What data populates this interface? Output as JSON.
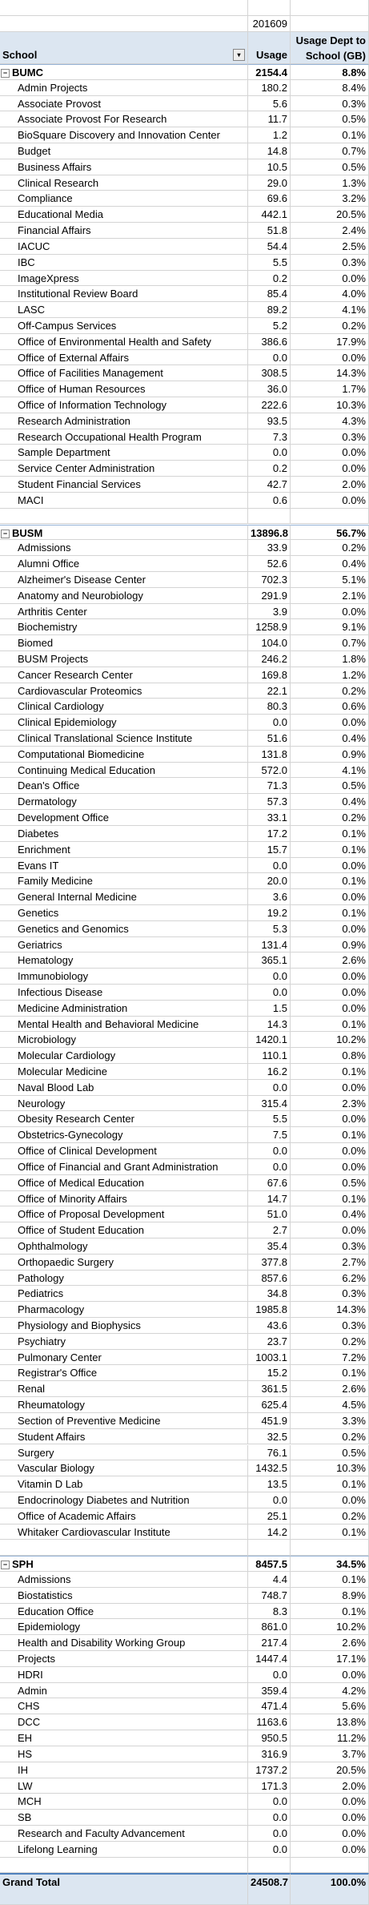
{
  "header": {
    "period": "201609",
    "col_school": "School",
    "col_usage": "Usage",
    "col_pct": "Usage Dept to School (GB)"
  },
  "groups": [
    {
      "name": "BUMC",
      "usage": "2154.4",
      "pct": "8.8%",
      "rows": [
        [
          "Admin Projects",
          "180.2",
          "8.4%"
        ],
        [
          "Associate Provost",
          "5.6",
          "0.3%"
        ],
        [
          "Associate Provost For Research",
          "11.7",
          "0.5%"
        ],
        [
          "BioSquare Discovery and Innovation Center",
          "1.2",
          "0.1%"
        ],
        [
          "Budget",
          "14.8",
          "0.7%"
        ],
        [
          "Business Affairs",
          "10.5",
          "0.5%"
        ],
        [
          "Clinical Research",
          "29.0",
          "1.3%"
        ],
        [
          "Compliance",
          "69.6",
          "3.2%"
        ],
        [
          "Educational Media",
          "442.1",
          "20.5%"
        ],
        [
          "Financial Affairs",
          "51.8",
          "2.4%"
        ],
        [
          "IACUC",
          "54.4",
          "2.5%"
        ],
        [
          "IBC",
          "5.5",
          "0.3%"
        ],
        [
          "ImageXpress",
          "0.2",
          "0.0%"
        ],
        [
          "Institutional Review Board",
          "85.4",
          "4.0%"
        ],
        [
          "LASC",
          "89.2",
          "4.1%"
        ],
        [
          "Off-Campus Services",
          "5.2",
          "0.2%"
        ],
        [
          "Office of Environmental Health and Safety",
          "386.6",
          "17.9%"
        ],
        [
          "Office of External Affairs",
          "0.0",
          "0.0%"
        ],
        [
          "Office of Facilities Management",
          "308.5",
          "14.3%"
        ],
        [
          "Office of Human Resources",
          "36.0",
          "1.7%"
        ],
        [
          "Office of Information Technology",
          "222.6",
          "10.3%"
        ],
        [
          "Research Administration",
          "93.5",
          "4.3%"
        ],
        [
          "Research Occupational Health Program",
          "7.3",
          "0.3%"
        ],
        [
          "Sample Department",
          "0.0",
          "0.0%"
        ],
        [
          "Service Center Administration",
          "0.2",
          "0.0%"
        ],
        [
          "Student Financial Services",
          "42.7",
          "2.0%"
        ],
        [
          "MACI",
          "0.6",
          "0.0%"
        ]
      ]
    },
    {
      "name": "BUSM",
      "usage": "13896.8",
      "pct": "56.7%",
      "rows": [
        [
          "Admissions",
          "33.9",
          "0.2%"
        ],
        [
          "Alumni Office",
          "52.6",
          "0.4%"
        ],
        [
          "Alzheimer's Disease Center",
          "702.3",
          "5.1%"
        ],
        [
          "Anatomy and Neurobiology",
          "291.9",
          "2.1%"
        ],
        [
          "Arthritis Center",
          "3.9",
          "0.0%"
        ],
        [
          "Biochemistry",
          "1258.9",
          "9.1%"
        ],
        [
          "Biomed",
          "104.0",
          "0.7%"
        ],
        [
          "BUSM Projects",
          "246.2",
          "1.8%"
        ],
        [
          "Cancer Research Center",
          "169.8",
          "1.2%"
        ],
        [
          "Cardiovascular Proteomics",
          "22.1",
          "0.2%"
        ],
        [
          "Clinical Cardiology",
          "80.3",
          "0.6%"
        ],
        [
          "Clinical Epidemiology",
          "0.0",
          "0.0%"
        ],
        [
          "Clinical Translational Science Institute",
          "51.6",
          "0.4%"
        ],
        [
          "Computational Biomedicine",
          "131.8",
          "0.9%"
        ],
        [
          "Continuing Medical Education",
          "572.0",
          "4.1%"
        ],
        [
          "Dean's Office",
          "71.3",
          "0.5%"
        ],
        [
          "Dermatology",
          "57.3",
          "0.4%"
        ],
        [
          "Development Office",
          "33.1",
          "0.2%"
        ],
        [
          "Diabetes",
          "17.2",
          "0.1%"
        ],
        [
          "Enrichment",
          "15.7",
          "0.1%"
        ],
        [
          "Evans IT",
          "0.0",
          "0.0%"
        ],
        [
          "Family Medicine",
          "20.0",
          "0.1%"
        ],
        [
          "General Internal Medicine",
          "3.6",
          "0.0%"
        ],
        [
          "Genetics",
          "19.2",
          "0.1%"
        ],
        [
          "Genetics and Genomics",
          "5.3",
          "0.0%"
        ],
        [
          "Geriatrics",
          "131.4",
          "0.9%"
        ],
        [
          "Hematology",
          "365.1",
          "2.6%"
        ],
        [
          "Immunobiology",
          "0.0",
          "0.0%"
        ],
        [
          "Infectious Disease",
          "0.0",
          "0.0%"
        ],
        [
          "Medicine Administration",
          "1.5",
          "0.0%"
        ],
        [
          "Mental Health and Behavioral Medicine",
          "14.3",
          "0.1%"
        ],
        [
          "Microbiology",
          "1420.1",
          "10.2%"
        ],
        [
          "Molecular Cardiology",
          "110.1",
          "0.8%"
        ],
        [
          "Molecular Medicine",
          "16.2",
          "0.1%"
        ],
        [
          "Naval Blood Lab",
          "0.0",
          "0.0%"
        ],
        [
          "Neurology",
          "315.4",
          "2.3%"
        ],
        [
          "Obesity Research Center",
          "5.5",
          "0.0%"
        ],
        [
          "Obstetrics-Gynecology",
          "7.5",
          "0.1%"
        ],
        [
          "Office of Clinical Development",
          "0.0",
          "0.0%"
        ],
        [
          "Office of Financial and Grant Administration",
          "0.0",
          "0.0%"
        ],
        [
          "Office of Medical Education",
          "67.6",
          "0.5%"
        ],
        [
          "Office of Minority Affairs",
          "14.7",
          "0.1%"
        ],
        [
          "Office of Proposal Development",
          "51.0",
          "0.4%"
        ],
        [
          "Office of Student Education",
          "2.7",
          "0.0%"
        ],
        [
          "Ophthalmology",
          "35.4",
          "0.3%"
        ],
        [
          "Orthopaedic Surgery",
          "377.8",
          "2.7%"
        ],
        [
          "Pathology",
          "857.6",
          "6.2%"
        ],
        [
          "Pediatrics",
          "34.8",
          "0.3%"
        ],
        [
          "Pharmacology",
          "1985.8",
          "14.3%"
        ],
        [
          "Physiology and Biophysics",
          "43.6",
          "0.3%"
        ],
        [
          "Psychiatry",
          "23.7",
          "0.2%"
        ],
        [
          "Pulmonary Center",
          "1003.1",
          "7.2%"
        ],
        [
          "Registrar's Office",
          "15.2",
          "0.1%"
        ],
        [
          "Renal",
          "361.5",
          "2.6%"
        ],
        [
          "Rheumatology",
          "625.4",
          "4.5%"
        ],
        [
          "Section of Preventive Medicine",
          "451.9",
          "3.3%"
        ],
        [
          "Student Affairs",
          "32.5",
          "0.2%"
        ],
        [
          "Surgery",
          "76.1",
          "0.5%"
        ],
        [
          "Vascular Biology",
          "1432.5",
          "10.3%"
        ],
        [
          "Vitamin D Lab",
          "13.5",
          "0.1%"
        ],
        [
          "Endocrinology Diabetes and Nutrition",
          "0.0",
          "0.0%"
        ],
        [
          "Office of Academic Affairs",
          "25.1",
          "0.2%"
        ],
        [
          "Whitaker Cardiovascular Institute",
          "14.2",
          "0.1%"
        ]
      ]
    },
    {
      "name": "SPH",
      "usage": "8457.5",
      "pct": "34.5%",
      "rows": [
        [
          "Admissions",
          "4.4",
          "0.1%"
        ],
        [
          "Biostatistics",
          "748.7",
          "8.9%"
        ],
        [
          "Education Office",
          "8.3",
          "0.1%"
        ],
        [
          "Epidemiology",
          "861.0",
          "10.2%"
        ],
        [
          "Health and Disability Working Group",
          "217.4",
          "2.6%"
        ],
        [
          "Projects",
          "1447.4",
          "17.1%"
        ],
        [
          "HDRI",
          "0.0",
          "0.0%"
        ],
        [
          "Admin",
          "359.4",
          "4.2%"
        ],
        [
          "CHS",
          "471.4",
          "5.6%"
        ],
        [
          "DCC",
          "1163.6",
          "13.8%"
        ],
        [
          "EH",
          "950.5",
          "11.2%"
        ],
        [
          "HS",
          "316.9",
          "3.7%"
        ],
        [
          "IH",
          "1737.2",
          "20.5%"
        ],
        [
          "LW",
          "171.3",
          "2.0%"
        ],
        [
          "MCH",
          "0.0",
          "0.0%"
        ],
        [
          "SB",
          "0.0",
          "0.0%"
        ],
        [
          "Research and Faculty Advancement",
          "0.0",
          "0.0%"
        ],
        [
          "Lifelong Learning",
          "0.0",
          "0.0%"
        ]
      ]
    }
  ],
  "grand_total": {
    "label": "Grand Total",
    "usage": "24508.7",
    "pct": "100.0%"
  }
}
